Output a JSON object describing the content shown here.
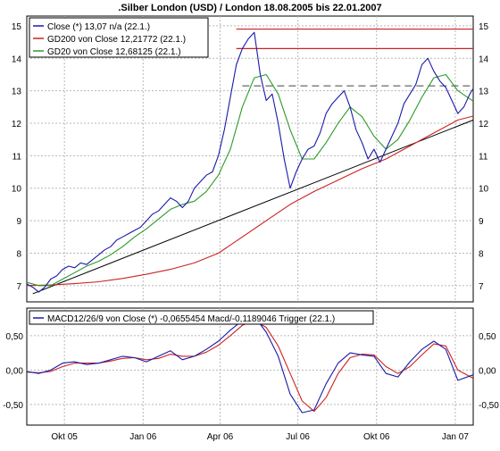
{
  "chart_data": [
    {
      "type": "line",
      "title": ".Silber London (USD) / London 18.08.2005 bis 22.01.2007",
      "xlabel": "",
      "ylabel": "",
      "ylim": [
        6.5,
        15.3
      ],
      "yticks": [
        7,
        8,
        9,
        10,
        11,
        12,
        13,
        14,
        15
      ],
      "xlim": [
        "2005-08-18",
        "2007-01-22"
      ],
      "xticks": [
        {
          "date": "2005-10-01",
          "label": "Okt 05"
        },
        {
          "date": "2006-01-01",
          "label": "Jan 06"
        },
        {
          "date": "2006-04-01",
          "label": "Apr 06"
        },
        {
          "date": "2006-07-01",
          "label": "Jul 06"
        },
        {
          "date": "2006-10-01",
          "label": "Okt 06"
        },
        {
          "date": "2007-01-01",
          "label": "Jan 07"
        }
      ],
      "grid": true,
      "legend_position": "top-left",
      "series": [
        {
          "name": "Close (*) 13,07 n/a (22.1.)",
          "color": "#1a1aa8",
          "x": [
            "2005-08-18",
            "2005-08-25",
            "2005-09-01",
            "2005-09-08",
            "2005-09-15",
            "2005-09-22",
            "2005-09-29",
            "2005-10-06",
            "2005-10-13",
            "2005-10-20",
            "2005-10-27",
            "2005-11-03",
            "2005-11-10",
            "2005-11-17",
            "2005-11-24",
            "2005-12-01",
            "2005-12-08",
            "2005-12-15",
            "2005-12-22",
            "2005-12-29",
            "2006-01-05",
            "2006-01-12",
            "2006-01-19",
            "2006-01-26",
            "2006-02-02",
            "2006-02-09",
            "2006-02-16",
            "2006-02-23",
            "2006-03-02",
            "2006-03-09",
            "2006-03-16",
            "2006-03-23",
            "2006-03-30",
            "2006-04-06",
            "2006-04-13",
            "2006-04-20",
            "2006-04-27",
            "2006-05-04",
            "2006-05-11",
            "2006-05-18",
            "2006-05-25",
            "2006-06-01",
            "2006-06-08",
            "2006-06-15",
            "2006-06-22",
            "2006-06-29",
            "2006-07-06",
            "2006-07-13",
            "2006-07-20",
            "2006-07-27",
            "2006-08-03",
            "2006-08-10",
            "2006-08-17",
            "2006-08-24",
            "2006-08-31",
            "2006-09-07",
            "2006-09-14",
            "2006-09-21",
            "2006-09-28",
            "2006-10-05",
            "2006-10-12",
            "2006-10-19",
            "2006-10-26",
            "2006-11-02",
            "2006-11-09",
            "2006-11-16",
            "2006-11-23",
            "2006-11-30",
            "2006-12-07",
            "2006-12-14",
            "2006-12-21",
            "2006-12-28",
            "2007-01-04",
            "2007-01-11",
            "2007-01-18",
            "2007-01-22"
          ],
          "values": [
            7.05,
            6.95,
            6.8,
            6.95,
            7.2,
            7.3,
            7.5,
            7.6,
            7.55,
            7.7,
            7.65,
            7.8,
            7.95,
            8.1,
            8.2,
            8.4,
            8.5,
            8.6,
            8.7,
            8.8,
            9.0,
            9.2,
            9.3,
            9.5,
            9.7,
            9.6,
            9.4,
            9.6,
            10.0,
            10.2,
            10.4,
            10.5,
            11.0,
            11.8,
            12.8,
            13.8,
            14.3,
            14.6,
            14.8,
            13.5,
            12.7,
            12.9,
            12.0,
            10.9,
            10.0,
            10.5,
            10.9,
            11.2,
            11.3,
            11.7,
            12.3,
            12.6,
            12.8,
            13.0,
            12.5,
            11.8,
            11.4,
            10.9,
            11.2,
            10.8,
            11.2,
            11.6,
            12.0,
            12.6,
            12.9,
            13.2,
            13.8,
            14.0,
            13.6,
            13.3,
            13.1,
            12.7,
            12.3,
            12.5,
            12.9,
            13.07
          ]
        },
        {
          "name": "GD200 von Close 12,21772 (22.1.)",
          "color": "#cc2222",
          "x": [
            "2005-08-18",
            "2005-09-15",
            "2005-10-13",
            "2005-11-10",
            "2005-12-08",
            "2006-01-05",
            "2006-02-02",
            "2006-03-02",
            "2006-03-30",
            "2006-04-27",
            "2006-05-25",
            "2006-06-22",
            "2006-07-20",
            "2006-08-17",
            "2006-09-14",
            "2006-10-12",
            "2006-11-09",
            "2006-12-07",
            "2007-01-04",
            "2007-01-22"
          ],
          "values": [
            7.0,
            7.02,
            7.06,
            7.12,
            7.22,
            7.35,
            7.5,
            7.7,
            8.0,
            8.5,
            9.0,
            9.5,
            9.9,
            10.25,
            10.6,
            10.9,
            11.3,
            11.7,
            12.1,
            12.22
          ]
        },
        {
          "name": "GD20 von Close 12,68125 (22.1.)",
          "color": "#2a9a2a",
          "x": [
            "2005-08-18",
            "2005-09-01",
            "2005-09-15",
            "2005-09-29",
            "2005-10-13",
            "2005-10-27",
            "2005-11-10",
            "2005-11-24",
            "2005-12-08",
            "2005-12-22",
            "2006-01-05",
            "2006-01-19",
            "2006-02-02",
            "2006-02-16",
            "2006-03-02",
            "2006-03-16",
            "2006-03-30",
            "2006-04-13",
            "2006-04-27",
            "2006-05-11",
            "2006-05-25",
            "2006-06-08",
            "2006-06-22",
            "2006-07-06",
            "2006-07-20",
            "2006-08-03",
            "2006-08-17",
            "2006-08-31",
            "2006-09-14",
            "2006-09-28",
            "2006-10-12",
            "2006-10-26",
            "2006-11-09",
            "2006-11-23",
            "2006-12-07",
            "2006-12-21",
            "2007-01-04",
            "2007-01-22"
          ],
          "values": [
            7.1,
            7.0,
            7.0,
            7.2,
            7.4,
            7.6,
            7.75,
            7.95,
            8.2,
            8.5,
            8.75,
            9.05,
            9.35,
            9.5,
            9.6,
            9.9,
            10.4,
            11.2,
            12.5,
            13.4,
            13.5,
            12.9,
            11.8,
            10.9,
            10.9,
            11.4,
            12.0,
            12.5,
            12.2,
            11.6,
            11.2,
            11.5,
            12.1,
            12.8,
            13.4,
            13.5,
            13.0,
            12.68
          ]
        }
      ],
      "annotations": {
        "resistance_lines": [
          14.9,
          14.3
        ],
        "dashed_line": 13.15,
        "trendline": {
          "x": [
            "2005-08-25",
            "2007-01-22"
          ],
          "y": [
            6.75,
            12.1
          ]
        }
      }
    },
    {
      "type": "line",
      "title": "",
      "ylim": [
        -0.8,
        0.9
      ],
      "yticks": [
        -0.5,
        0.0,
        0.5
      ],
      "ytick_labels": [
        "-0,50",
        "0,00",
        "0,50"
      ],
      "grid": true,
      "legend_position": "top-left",
      "series": [
        {
          "name": "MACD12/26/9 von Close (*) -0,0655454 Macd/-0,1189046 Trigger (22.1.)",
          "color": "#1a1aa8",
          "x": [
            "2005-08-18",
            "2005-09-01",
            "2005-09-15",
            "2005-09-29",
            "2005-10-13",
            "2005-10-27",
            "2005-11-10",
            "2005-11-24",
            "2005-12-08",
            "2005-12-22",
            "2006-01-05",
            "2006-01-19",
            "2006-02-02",
            "2006-02-16",
            "2006-03-02",
            "2006-03-16",
            "2006-03-30",
            "2006-04-13",
            "2006-04-27",
            "2006-05-11",
            "2006-05-25",
            "2006-06-08",
            "2006-06-22",
            "2006-07-06",
            "2006-07-20",
            "2006-08-03",
            "2006-08-17",
            "2006-08-31",
            "2006-09-14",
            "2006-09-28",
            "2006-10-12",
            "2006-10-26",
            "2006-11-09",
            "2006-11-23",
            "2006-12-07",
            "2006-12-21",
            "2007-01-04",
            "2007-01-22"
          ],
          "values": [
            -0.02,
            -0.05,
            0.0,
            0.1,
            0.12,
            0.08,
            0.1,
            0.15,
            0.2,
            0.18,
            0.12,
            0.2,
            0.28,
            0.15,
            0.2,
            0.3,
            0.42,
            0.58,
            0.72,
            0.78,
            0.55,
            0.2,
            -0.35,
            -0.62,
            -0.58,
            -0.2,
            0.1,
            0.25,
            0.22,
            0.2,
            -0.05,
            -0.1,
            0.12,
            0.3,
            0.42,
            0.3,
            -0.15,
            -0.07
          ]
        },
        {
          "name": "Trigger",
          "color": "#cc2222",
          "x": [
            "2005-08-18",
            "2005-09-01",
            "2005-09-15",
            "2005-09-29",
            "2005-10-13",
            "2005-10-27",
            "2005-11-10",
            "2005-11-24",
            "2005-12-08",
            "2005-12-22",
            "2006-01-05",
            "2006-01-19",
            "2006-02-02",
            "2006-02-16",
            "2006-03-02",
            "2006-03-16",
            "2006-03-30",
            "2006-04-13",
            "2006-04-27",
            "2006-05-11",
            "2006-05-25",
            "2006-06-08",
            "2006-06-22",
            "2006-07-06",
            "2006-07-20",
            "2006-08-03",
            "2006-08-17",
            "2006-08-31",
            "2006-09-14",
            "2006-09-28",
            "2006-10-12",
            "2006-10-26",
            "2006-11-09",
            "2006-11-23",
            "2006-12-07",
            "2006-12-21",
            "2007-01-04",
            "2007-01-22"
          ],
          "values": [
            -0.03,
            -0.04,
            -0.02,
            0.05,
            0.1,
            0.1,
            0.1,
            0.13,
            0.17,
            0.18,
            0.15,
            0.17,
            0.23,
            0.2,
            0.2,
            0.26,
            0.36,
            0.5,
            0.65,
            0.72,
            0.62,
            0.35,
            -0.05,
            -0.45,
            -0.6,
            -0.4,
            -0.05,
            0.18,
            0.23,
            0.22,
            0.05,
            -0.05,
            0.05,
            0.22,
            0.38,
            0.35,
            0.0,
            -0.12
          ]
        }
      ],
      "xticks": [
        {
          "date": "2005-10-01",
          "label": "Okt 05"
        },
        {
          "date": "2006-01-01",
          "label": "Jan 06"
        },
        {
          "date": "2006-04-01",
          "label": "Apr 06"
        },
        {
          "date": "2006-07-01",
          "label": "Jul 06"
        },
        {
          "date": "2006-10-01",
          "label": "Okt 06"
        },
        {
          "date": "2007-01-01",
          "label": "Jan 07"
        }
      ]
    }
  ]
}
